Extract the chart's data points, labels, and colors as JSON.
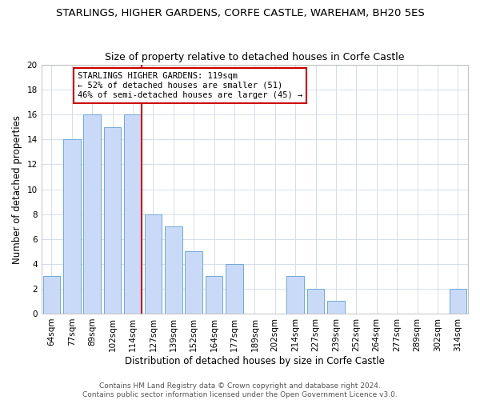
{
  "title": "STARLINGS, HIGHER GARDENS, CORFE CASTLE, WAREHAM, BH20 5ES",
  "subtitle": "Size of property relative to detached houses in Corfe Castle",
  "xlabel": "Distribution of detached houses by size in Corfe Castle",
  "ylabel": "Number of detached properties",
  "footer1": "Contains HM Land Registry data © Crown copyright and database right 2024.",
  "footer2": "Contains public sector information licensed under the Open Government Licence v3.0.",
  "categories": [
    "64sqm",
    "77sqm",
    "89sqm",
    "102sqm",
    "114sqm",
    "127sqm",
    "139sqm",
    "152sqm",
    "164sqm",
    "177sqm",
    "189sqm",
    "202sqm",
    "214sqm",
    "227sqm",
    "239sqm",
    "252sqm",
    "264sqm",
    "277sqm",
    "289sqm",
    "302sqm",
    "314sqm"
  ],
  "values": [
    3,
    14,
    16,
    15,
    16,
    8,
    7,
    5,
    3,
    4,
    0,
    0,
    3,
    2,
    1,
    0,
    0,
    0,
    0,
    0,
    2
  ],
  "bar_color": "#c9daf8",
  "bar_edge_color": "#6fa8dc",
  "highlight_index": 4,
  "highlight_line_color": "#cc0000",
  "ylim": [
    0,
    20
  ],
  "yticks": [
    0,
    2,
    4,
    6,
    8,
    10,
    12,
    14,
    16,
    18,
    20
  ],
  "annotation_lines": [
    "STARLINGS HIGHER GARDENS: 119sqm",
    "← 52% of detached houses are smaller (51)",
    "46% of semi-detached houses are larger (45) →"
  ],
  "annotation_box_color": "#ffffff",
  "annotation_box_edge": "#cc0000",
  "title_fontsize": 9.5,
  "subtitle_fontsize": 9,
  "axis_label_fontsize": 8.5,
  "tick_fontsize": 7.5,
  "annotation_fontsize": 7.5,
  "footer_fontsize": 6.5
}
